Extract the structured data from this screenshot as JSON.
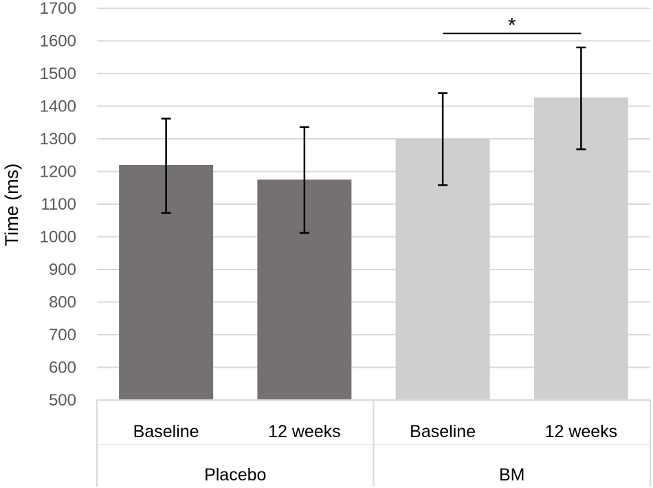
{
  "chart_data": {
    "type": "bar",
    "title": "",
    "xlabel": "",
    "ylabel": "Time (ms)",
    "ylim": [
      500,
      1700
    ],
    "yticks": [
      500,
      600,
      700,
      800,
      900,
      1000,
      1100,
      1200,
      1300,
      1400,
      1500,
      1600,
      1700
    ],
    "grid": true,
    "legend": "none",
    "groups": [
      {
        "name": "Placebo",
        "categories": [
          "Baseline",
          "12 weeks"
        ],
        "color": "#767171"
      },
      {
        "name": "BM",
        "categories": [
          "Baseline",
          "12 weeks"
        ],
        "color": "#d0cece"
      }
    ],
    "bars": [
      {
        "group": "Placebo",
        "category": "Baseline",
        "value": 1220,
        "error_low": 1073,
        "error_high": 1362
      },
      {
        "group": "Placebo",
        "category": "12 weeks",
        "value": 1175,
        "error_low": 1012,
        "error_high": 1336
      },
      {
        "group": "BM",
        "category": "Baseline",
        "value": 1300,
        "error_low": 1158,
        "error_high": 1440
      },
      {
        "group": "BM",
        "category": "12 weeks",
        "value": 1427,
        "error_low": 1268,
        "error_high": 1580
      }
    ],
    "annotations": [
      {
        "text": "*",
        "from_bar": 2,
        "to_bar": 3,
        "at_value": 1623
      }
    ]
  },
  "colors": {
    "grid": "#d9d9d9",
    "axis_text": "#595959",
    "error_bar": "#000000"
  }
}
